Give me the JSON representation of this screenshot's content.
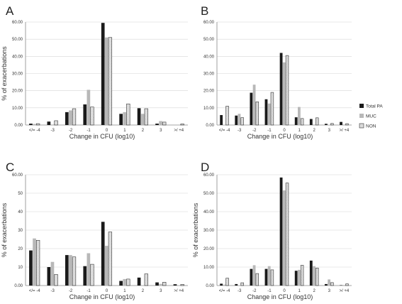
{
  "colors": {
    "total": "#1a1a1a",
    "muc": "#b8b8b8",
    "non_fill": "#ffffff",
    "non_hatch": "#9a9a9a",
    "grid": "#d6d6d6",
    "axis": "#888888"
  },
  "legend": [
    {
      "key": "total",
      "label": "Total PA"
    },
    {
      "key": "muc",
      "label": "MUC"
    },
    {
      "key": "non",
      "label": "NON"
    }
  ],
  "chart_data": [
    {
      "panel": "A",
      "type": "bar",
      "categories": [
        "</= -4",
        "-3",
        "-2",
        "-1",
        "0",
        "1",
        "2",
        "3",
        ">/ +4"
      ],
      "ylabel": "% of exacerbations",
      "xlabel": "Change in CFU (log10)",
      "ylim": [
        0,
        60
      ],
      "yticks": [
        "0.00",
        "10.00",
        "20.00",
        "30.00",
        "40.00",
        "50.00",
        "60.00"
      ],
      "series": [
        {
          "name": "Total PA",
          "key": "total",
          "values": [
            0.8,
            2.0,
            7.5,
            12.0,
            59.5,
            6.5,
            9.8,
            0.8,
            0
          ]
        },
        {
          "name": "MUC",
          "key": "muc",
          "values": [
            0.6,
            0.3,
            8.5,
            20.5,
            51.0,
            7.5,
            6.5,
            2.3,
            0
          ]
        },
        {
          "name": "NON",
          "key": "non",
          "values": [
            0.8,
            2.5,
            9.5,
            10.5,
            51.0,
            12.3,
            9.5,
            1.7,
            0.6
          ]
        }
      ]
    },
    {
      "panel": "B",
      "type": "bar",
      "categories": [
        "</= -4",
        "-3",
        "-2",
        "-1",
        "0",
        "1",
        "2",
        "3",
        ">/ +4"
      ],
      "ylabel": "",
      "xlabel": "Change in CFU (log10)",
      "ylim": [
        0,
        60
      ],
      "yticks": [
        "0.00",
        "10.00",
        "20.00",
        "30.00",
        "40.00",
        "50.00",
        "60.00"
      ],
      "series": [
        {
          "name": "Total PA",
          "key": "total",
          "values": [
            5.8,
            5.5,
            18.8,
            15.0,
            42.0,
            4.5,
            3.5,
            0.7,
            1.8
          ]
        },
        {
          "name": "MUC",
          "key": "muc",
          "values": [
            0.2,
            6.5,
            23.5,
            12.5,
            36.5,
            10.5,
            0.3,
            0.2,
            0.3
          ]
        },
        {
          "name": "NON",
          "key": "non",
          "values": [
            11.0,
            4.3,
            13.5,
            19.0,
            40.5,
            3.8,
            4.2,
            0.9,
            0.8
          ]
        }
      ]
    },
    {
      "panel": "C",
      "type": "bar",
      "categories": [
        "</= -4",
        "-3",
        "-2",
        "-1",
        "0",
        "1",
        "2",
        "3",
        ">/ +4"
      ],
      "ylabel": "% of exacerbations",
      "xlabel": "Change in CFU (log10)",
      "ylim": [
        0,
        60
      ],
      "yticks": [
        "0.00",
        "10",
        "20",
        "30",
        "40",
        "50",
        "60.00"
      ],
      "series": [
        {
          "name": "Total PA",
          "key": "total",
          "values": [
            19.0,
            10.0,
            16.5,
            10.5,
            34.5,
            2.5,
            4.3,
            1.7,
            0.7
          ]
        },
        {
          "name": "MUC",
          "key": "muc",
          "values": [
            25.5,
            12.8,
            16.5,
            17.5,
            21.5,
            3.5,
            0.2,
            0.9,
            0.2
          ]
        },
        {
          "name": "NON",
          "key": "non",
          "values": [
            24.5,
            6.0,
            15.5,
            11.5,
            29.0,
            3.5,
            6.3,
            1.8,
            0.6
          ]
        }
      ]
    },
    {
      "panel": "D",
      "type": "bar",
      "categories": [
        "</= -4",
        "-3",
        "-2",
        "-1",
        "0",
        "1",
        "2",
        "3",
        ">/ +4"
      ],
      "ylabel": "% of exacerbations",
      "xlabel": "Change in CFU (log10)",
      "ylim": [
        0,
        60
      ],
      "yticks": [
        "0.00",
        "10.00",
        "20.00",
        "30.00",
        "40.00",
        "50.00",
        "60.00"
      ],
      "series": [
        {
          "name": "Total PA",
          "key": "total",
          "values": [
            1.0,
            0.8,
            9.0,
            9.0,
            58.5,
            8.0,
            13.5,
            0.8,
            0.2
          ]
        },
        {
          "name": "MUC",
          "key": "muc",
          "values": [
            0.5,
            0.2,
            11.0,
            10.5,
            51.5,
            8.5,
            10.5,
            3.3,
            0.3
          ]
        },
        {
          "name": "NON",
          "key": "non",
          "values": [
            4.0,
            1.5,
            6.5,
            8.5,
            55.5,
            11.0,
            9.5,
            1.6,
            0.9
          ]
        }
      ]
    }
  ]
}
